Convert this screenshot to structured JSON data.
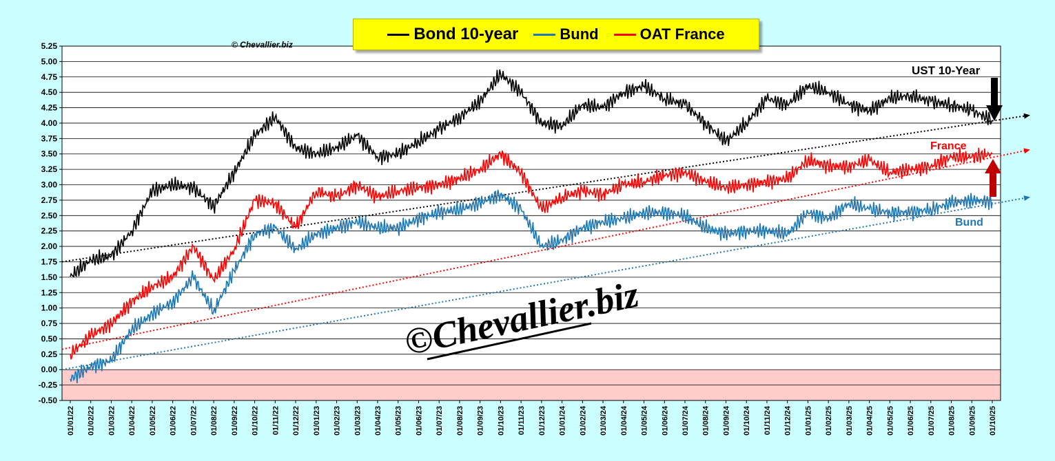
{
  "copyright_small": "© Chevallier.biz",
  "watermark": "©Chevallier.biz",
  "legend": [
    {
      "label": "Bond 10-year",
      "color": "#000000"
    },
    {
      "label": "Bund",
      "color": "#1f77b4"
    },
    {
      "label": "OAT France",
      "color": "#ff0000"
    }
  ],
  "annotations": {
    "ust": "UST 10-Year",
    "france": "France",
    "bund": "Bund"
  },
  "colors": {
    "background": "#ccffff",
    "plot_area": "#ffffff",
    "negative_zone": "#ffcccc",
    "grid": "#000000",
    "bund": "#1f77b4",
    "oat": "#ff0000",
    "us": "#000000",
    "arrow_us": "#000000",
    "arrow_france": "#c00000"
  },
  "chart_data": {
    "type": "line",
    "title": "",
    "xlabel": "",
    "ylabel": "",
    "ylim": [
      -0.5,
      5.25
    ],
    "y_ticks": [
      "5.25",
      "5.00",
      "4.75",
      "4.50",
      "4.25",
      "4.00",
      "3.75",
      "3.50",
      "3.25",
      "3.00",
      "2.75",
      "2.50",
      "2.25",
      "2.00",
      "1.75",
      "1.50",
      "1.25",
      "1.00",
      "0.75",
      "0.50",
      "0.25",
      "0.00",
      "-0.25",
      "-0.50"
    ],
    "x_ticks": [
      "01/01/22",
      "01/02/22",
      "01/03/22",
      "01/04/22",
      "01/05/22",
      "01/06/22",
      "01/07/22",
      "01/08/22",
      "01/09/22",
      "01/10/22",
      "01/11/22",
      "01/12/22",
      "01/01/23",
      "01/02/23",
      "01/03/23",
      "01/04/23",
      "01/05/23",
      "01/06/23",
      "01/07/23",
      "01/08/23",
      "01/09/23",
      "01/10/23",
      "01/11/23",
      "01/12/23",
      "01/01/24",
      "01/02/24",
      "01/03/24",
      "01/04/24",
      "01/05/24",
      "01/06/24",
      "01/07/24",
      "01/08/24",
      "01/09/24",
      "01/10/24",
      "01/11/24",
      "01/12/24",
      "01/01/25",
      "01/02/25",
      "01/03/25",
      "01/04/25",
      "01/05/25",
      "01/06/25",
      "01/07/25",
      "01/08/25",
      "01/09/25",
      "01/10/25"
    ],
    "negative_zone": [
      -0.5,
      0
    ],
    "grid": true,
    "series": [
      {
        "name": "Bond 10-year",
        "color": "#000000",
        "values": [
          1.51,
          1.78,
          1.84,
          2.25,
          2.9,
          3.0,
          2.95,
          2.65,
          3.2,
          3.8,
          4.1,
          3.6,
          3.5,
          3.6,
          3.8,
          3.45,
          3.5,
          3.7,
          3.9,
          4.1,
          4.35,
          4.8,
          4.5,
          4.0,
          3.95,
          4.3,
          4.25,
          4.5,
          4.6,
          4.4,
          4.3,
          4.0,
          3.7,
          4.0,
          4.4,
          4.3,
          4.6,
          4.5,
          4.3,
          4.2,
          4.4,
          4.45,
          4.35,
          4.3,
          4.2,
          4.05
        ]
      },
      {
        "name": "OAT France",
        "color": "#ff0000",
        "values": [
          0.25,
          0.55,
          0.75,
          1.1,
          1.35,
          1.5,
          2.0,
          1.45,
          1.95,
          2.75,
          2.7,
          2.3,
          2.9,
          2.8,
          3.0,
          2.8,
          2.9,
          2.95,
          3.0,
          3.1,
          3.25,
          3.5,
          3.2,
          2.6,
          2.8,
          2.9,
          2.85,
          3.0,
          3.05,
          3.15,
          3.2,
          3.05,
          2.95,
          3.0,
          3.05,
          3.1,
          3.4,
          3.3,
          3.3,
          3.4,
          3.2,
          3.25,
          3.3,
          3.45,
          3.45,
          3.5
        ]
      },
      {
        "name": "Bund",
        "color": "#1f77b4",
        "values": [
          -0.15,
          0.05,
          0.15,
          0.65,
          0.9,
          1.1,
          1.5,
          0.95,
          1.6,
          2.2,
          2.3,
          1.95,
          2.2,
          2.3,
          2.4,
          2.3,
          2.3,
          2.45,
          2.55,
          2.6,
          2.7,
          2.85,
          2.6,
          2.0,
          2.1,
          2.3,
          2.4,
          2.45,
          2.55,
          2.55,
          2.5,
          2.3,
          2.2,
          2.25,
          2.25,
          2.2,
          2.55,
          2.45,
          2.7,
          2.6,
          2.55,
          2.55,
          2.6,
          2.7,
          2.75,
          2.72
        ]
      }
    ],
    "trendlines": [
      {
        "series": "Bond 10-year",
        "color": "#000000",
        "from": 1.75,
        "to": 4.13
      },
      {
        "series": "OAT France",
        "color": "#ff0000",
        "from": 0.33,
        "to": 3.57
      },
      {
        "series": "Bund",
        "color": "#1f77b4",
        "from": 0.0,
        "to": 2.8
      }
    ]
  }
}
